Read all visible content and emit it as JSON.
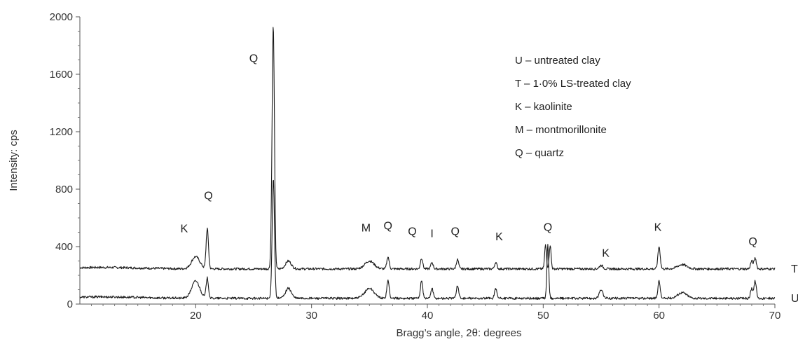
{
  "chart_data": {
    "type": "line",
    "xlabel": "Bragg’s angle, 2θ: degrees",
    "ylabel": "Intensity: cps",
    "xlim": [
      10,
      70
    ],
    "ylim": [
      0,
      2000
    ],
    "x_ticks": [
      20,
      30,
      40,
      50,
      60,
      70
    ],
    "y_ticks": [
      0,
      400,
      800,
      1200,
      1600,
      2000
    ],
    "grid": false,
    "legend_position": "top-right",
    "legend": [
      "U – untreated clay",
      "T – 1·0% LS-treated clay",
      "K – kaolinite",
      "M – montmorillonite",
      "Q – quartz"
    ],
    "series": [
      {
        "name": "T",
        "baseline": 245,
        "peaks": [
          {
            "x": 20.0,
            "y": 330,
            "w": 0.35
          },
          {
            "x": 21.0,
            "y": 525,
            "w": 0.1
          },
          {
            "x": 26.6,
            "y": 390,
            "w": 0.1
          },
          {
            "x": 26.7,
            "y": 1850,
            "w": 0.1
          },
          {
            "x": 28.0,
            "y": 300,
            "w": 0.25
          },
          {
            "x": 35.0,
            "y": 300,
            "w": 0.4
          },
          {
            "x": 36.6,
            "y": 330,
            "w": 0.1
          },
          {
            "x": 39.5,
            "y": 320,
            "w": 0.1
          },
          {
            "x": 40.4,
            "y": 290,
            "w": 0.1
          },
          {
            "x": 42.6,
            "y": 310,
            "w": 0.1
          },
          {
            "x": 45.9,
            "y": 290,
            "w": 0.1
          },
          {
            "x": 50.2,
            "y": 410,
            "w": 0.08
          },
          {
            "x": 50.6,
            "y": 410,
            "w": 0.08
          },
          {
            "x": 55.0,
            "y": 270,
            "w": 0.15
          },
          {
            "x": 60.0,
            "y": 400,
            "w": 0.1
          },
          {
            "x": 62.0,
            "y": 275,
            "w": 0.4
          },
          {
            "x": 68.0,
            "y": 300,
            "w": 0.1
          },
          {
            "x": 68.3,
            "y": 320,
            "w": 0.1
          }
        ]
      },
      {
        "name": "U",
        "baseline": 40,
        "peaks": [
          {
            "x": 20.0,
            "y": 160,
            "w": 0.35
          },
          {
            "x": 21.0,
            "y": 180,
            "w": 0.1
          },
          {
            "x": 26.7,
            "y": 880,
            "w": 0.1
          },
          {
            "x": 28.0,
            "y": 110,
            "w": 0.25
          },
          {
            "x": 35.0,
            "y": 110,
            "w": 0.4
          },
          {
            "x": 36.6,
            "y": 165,
            "w": 0.1
          },
          {
            "x": 39.5,
            "y": 165,
            "w": 0.1
          },
          {
            "x": 40.4,
            "y": 110,
            "w": 0.1
          },
          {
            "x": 42.6,
            "y": 130,
            "w": 0.1
          },
          {
            "x": 45.9,
            "y": 110,
            "w": 0.1
          },
          {
            "x": 50.4,
            "y": 410,
            "w": 0.08
          },
          {
            "x": 55.0,
            "y": 100,
            "w": 0.15
          },
          {
            "x": 60.0,
            "y": 160,
            "w": 0.1
          },
          {
            "x": 62.0,
            "y": 80,
            "w": 0.4
          },
          {
            "x": 68.0,
            "y": 110,
            "w": 0.1
          },
          {
            "x": 68.3,
            "y": 160,
            "w": 0.1
          }
        ]
      }
    ],
    "annotations": [
      {
        "text": "Q",
        "x": 25.0,
        "y": 1685
      },
      {
        "text": "Q",
        "x": 21.1,
        "y": 730
      },
      {
        "text": "K",
        "x": 19.0,
        "y": 500
      },
      {
        "text": "M",
        "x": 34.7,
        "y": 505
      },
      {
        "text": "Q",
        "x": 36.6,
        "y": 520
      },
      {
        "text": "Q",
        "x": 38.7,
        "y": 480
      },
      {
        "text": "I",
        "x": 40.4,
        "y": 465
      },
      {
        "text": "Q",
        "x": 42.4,
        "y": 480
      },
      {
        "text": "K",
        "x": 46.2,
        "y": 445
      },
      {
        "text": "Q",
        "x": 50.4,
        "y": 510
      },
      {
        "text": "K",
        "x": 55.4,
        "y": 330
      },
      {
        "text": "K",
        "x": 59.9,
        "y": 510
      },
      {
        "text": "Q",
        "x": 68.1,
        "y": 410
      }
    ]
  }
}
